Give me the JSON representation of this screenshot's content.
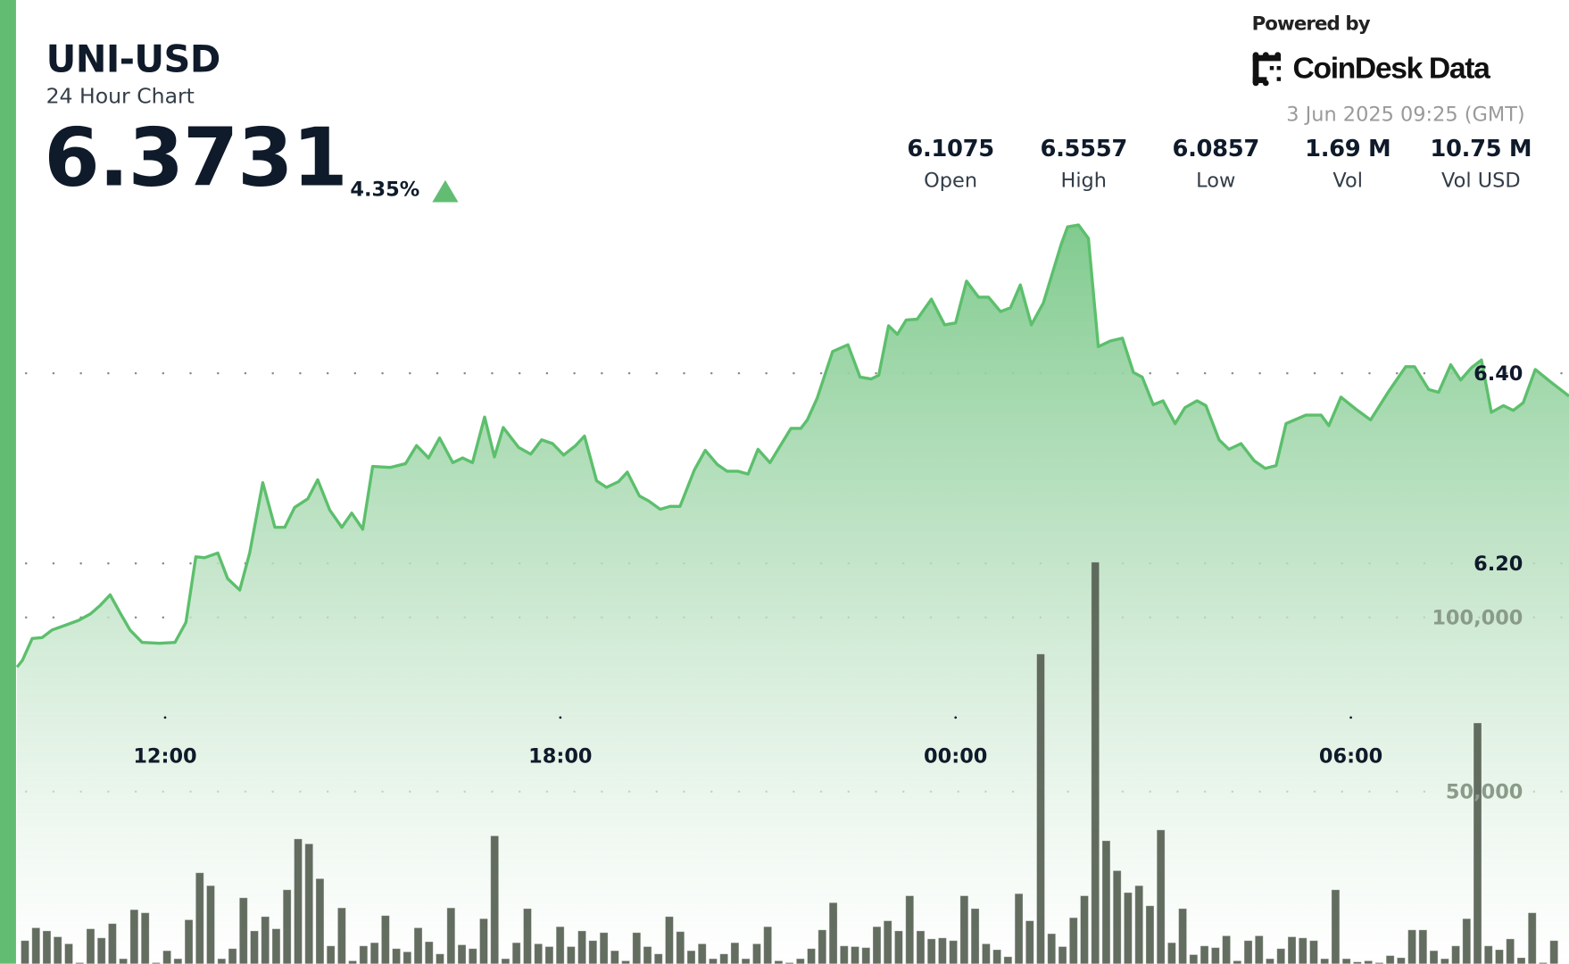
{
  "header": {
    "symbol": "UNI-USD",
    "subtitle": "24 Hour Chart",
    "price": "6.3731",
    "change": "4.35%",
    "change_direction": "up",
    "accent_color": "#62bd72"
  },
  "branding": {
    "powered_by": "Powered by",
    "logo_text": "CoinDesk Data",
    "timestamp": "3 Jun 2025 09:25 (GMT)"
  },
  "stats": [
    {
      "value": "6.1075",
      "label": "Open"
    },
    {
      "value": "6.5557",
      "label": "High"
    },
    {
      "value": "6.0857",
      "label": "Low"
    },
    {
      "value": "1.69 M",
      "label": "Vol"
    },
    {
      "value": "10.75 M",
      "label": "Vol USD"
    }
  ],
  "chart_data": {
    "type": "area",
    "grid": true,
    "line_color": "#5cbf6c",
    "volume_color": "#566152",
    "x_ticks": [
      "12:00",
      "18:00",
      "00:00",
      "06:00"
    ],
    "price_ticks": [
      {
        "value": 6.4,
        "label": "6.40"
      },
      {
        "value": 6.2,
        "label": "6.20"
      }
    ],
    "volume_ticks": [
      {
        "value": 100000,
        "label": "100,000"
      },
      {
        "value": 50000,
        "label": "50,000"
      }
    ],
    "price_series": [
      [
        "09:46",
        6.091
      ],
      [
        "09:50",
        6.098
      ],
      [
        "09:59",
        6.121
      ],
      [
        "10:08",
        6.122
      ],
      [
        "10:17",
        6.13
      ],
      [
        "10:29",
        6.135
      ],
      [
        "10:41",
        6.14
      ],
      [
        "10:52",
        6.147
      ],
      [
        "11:01",
        6.156
      ],
      [
        "11:10",
        6.167
      ],
      [
        "11:19",
        6.148
      ],
      [
        "11:28",
        6.13
      ],
      [
        "11:39",
        6.117
      ],
      [
        "11:55",
        6.116
      ],
      [
        "12:09",
        6.117
      ],
      [
        "12:19",
        6.138
      ],
      [
        "12:28",
        6.207
      ],
      [
        "12:36",
        6.206
      ],
      [
        "12:48",
        6.211
      ],
      [
        "12:57",
        6.184
      ],
      [
        "13:08",
        6.172
      ],
      [
        "13:17",
        6.211
      ],
      [
        "13:29",
        6.285
      ],
      [
        "13:40",
        6.238
      ],
      [
        "13:49",
        6.238
      ],
      [
        "13:58",
        6.259
      ],
      [
        "14:10",
        6.268
      ],
      [
        "14:19",
        6.288
      ],
      [
        "14:30",
        6.256
      ],
      [
        "14:41",
        6.238
      ],
      [
        "14:50",
        6.253
      ],
      [
        "15:00",
        6.236
      ],
      [
        "15:09",
        6.302
      ],
      [
        "15:25",
        6.301
      ],
      [
        "15:39",
        6.305
      ],
      [
        "15:49",
        6.324
      ],
      [
        "16:00",
        6.311
      ],
      [
        "16:10",
        6.332
      ],
      [
        "16:22",
        6.306
      ],
      [
        "16:31",
        6.311
      ],
      [
        "16:40",
        6.306
      ],
      [
        "16:51",
        6.354
      ],
      [
        "17:00",
        6.312
      ],
      [
        "17:08",
        6.343
      ],
      [
        "17:22",
        6.322
      ],
      [
        "17:33",
        6.315
      ],
      [
        "17:43",
        6.33
      ],
      [
        "17:53",
        6.326
      ],
      [
        "18:03",
        6.314
      ],
      [
        "18:14",
        6.324
      ],
      [
        "18:22",
        6.334
      ],
      [
        "18:33",
        6.287
      ],
      [
        "18:42",
        6.28
      ],
      [
        "18:53",
        6.286
      ],
      [
        "19:01",
        6.296
      ],
      [
        "19:12",
        6.271
      ],
      [
        "19:20",
        6.266
      ],
      [
        "19:31",
        6.257
      ],
      [
        "19:40",
        6.26
      ],
      [
        "19:49",
        6.26
      ],
      [
        "20:02",
        6.298
      ],
      [
        "20:12",
        6.319
      ],
      [
        "20:23",
        6.304
      ],
      [
        "20:32",
        6.297
      ],
      [
        "20:42",
        6.297
      ],
      [
        "20:51",
        6.294
      ],
      [
        "21:00",
        6.32
      ],
      [
        "21:11",
        6.306
      ],
      [
        "21:30",
        6.342
      ],
      [
        "21:39",
        6.342
      ],
      [
        "21:45",
        6.351
      ],
      [
        "21:54",
        6.374
      ],
      [
        "22:08",
        6.423
      ],
      [
        "22:22",
        6.43
      ],
      [
        "22:33",
        6.396
      ],
      [
        "22:43",
        6.394
      ],
      [
        "22:50",
        6.398
      ],
      [
        "22:59",
        6.45
      ],
      [
        "23:07",
        6.441
      ],
      [
        "23:15",
        6.456
      ],
      [
        "23:25",
        6.457
      ],
      [
        "23:38",
        6.478
      ],
      [
        "23:50",
        6.451
      ],
      [
        "00:00",
        6.453
      ],
      [
        "00:10",
        6.497
      ],
      [
        "00:21",
        6.48
      ],
      [
        "00:30",
        6.48
      ],
      [
        "00:41",
        6.465
      ],
      [
        "00:50",
        6.469
      ],
      [
        "00:59",
        6.493
      ],
      [
        "01:09",
        6.451
      ],
      [
        "01:20",
        6.474
      ],
      [
        "01:36",
        6.535
      ],
      [
        "01:42",
        6.554
      ],
      [
        "01:52",
        6.556
      ],
      [
        "02:01",
        6.542
      ],
      [
        "02:10",
        6.428
      ],
      [
        "02:21",
        6.434
      ],
      [
        "02:32",
        6.437
      ],
      [
        "02:42",
        6.401
      ],
      [
        "02:50",
        6.396
      ],
      [
        "03:00",
        6.367
      ],
      [
        "03:09",
        6.371
      ],
      [
        "03:20",
        6.347
      ],
      [
        "03:29",
        6.364
      ],
      [
        "03:40",
        6.371
      ],
      [
        "03:48",
        6.366
      ],
      [
        "04:00",
        6.33
      ],
      [
        "04:09",
        6.32
      ],
      [
        "04:20",
        6.326
      ],
      [
        "04:32",
        6.308
      ],
      [
        "04:42",
        6.3
      ],
      [
        "04:52",
        6.303
      ],
      [
        "05:01",
        6.347
      ],
      [
        "05:19",
        6.356
      ],
      [
        "05:33",
        6.356
      ],
      [
        "05:40",
        6.345
      ],
      [
        "05:51",
        6.375
      ],
      [
        "06:05",
        6.362
      ],
      [
        "06:18",
        6.351
      ],
      [
        "06:34",
        6.38
      ],
      [
        "06:50",
        6.407
      ],
      [
        "06:58",
        6.407
      ],
      [
        "07:11",
        6.383
      ],
      [
        "07:20",
        6.38
      ],
      [
        "07:31",
        6.409
      ],
      [
        "07:40",
        6.393
      ],
      [
        "07:50",
        6.406
      ],
      [
        "07:59",
        6.414
      ],
      [
        "08:08",
        6.359
      ],
      [
        "08:19",
        6.366
      ],
      [
        "08:28",
        6.361
      ],
      [
        "08:37",
        6.369
      ],
      [
        "08:48",
        6.404
      ],
      [
        "09:02",
        6.391
      ],
      [
        "09:19",
        6.376
      ]
    ],
    "volume_series": [
      7200,
      10900,
      10000,
      8300,
      6300,
      900,
      10600,
      8000,
      12100,
      2000,
      16100,
      15200,
      900,
      4300,
      2000,
      13200,
      26700,
      23000,
      2000,
      4900,
      19500,
      10000,
      14100,
      10600,
      21800,
      36400,
      35000,
      25000,
      5700,
      16600,
      1400,
      5700,
      6600,
      14400,
      4900,
      4000,
      10900,
      6900,
      3400,
      16600,
      6000,
      4900,
      13500,
      37300,
      2000,
      6600,
      16400,
      6300,
      5500,
      11200,
      5500,
      10000,
      7200,
      9500,
      4300,
      1400,
      9500,
      5500,
      3400,
      14100,
      9800,
      4300,
      6300,
      2000,
      3400,
      6600,
      2000,
      6300,
      11200,
      1400,
      900,
      2000,
      4900,
      10300,
      18100,
      5700,
      5500,
      5200,
      11200,
      12900,
      10000,
      20100,
      10000,
      7700,
      8000,
      7200,
      20100,
      16400,
      6300,
      4600,
      2600,
      20700,
      12900,
      89500,
      9200,
      5500,
      13800,
      20100,
      115900,
      35900,
      27300,
      21000,
      23000,
      17200,
      39000,
      6600,
      16400,
      3200,
      5700,
      5200,
      8600,
      1400,
      7200,
      8600,
      2000,
      4900,
      8300,
      8000,
      7200,
      2000,
      21800,
      2000,
      1100,
      1400,
      900,
      2900,
      2300,
      10300,
      10300,
      4300,
      2000,
      5700,
      13500,
      69700,
      5700,
      4600,
      7700,
      2300,
      15200,
      900,
      7200
    ]
  }
}
